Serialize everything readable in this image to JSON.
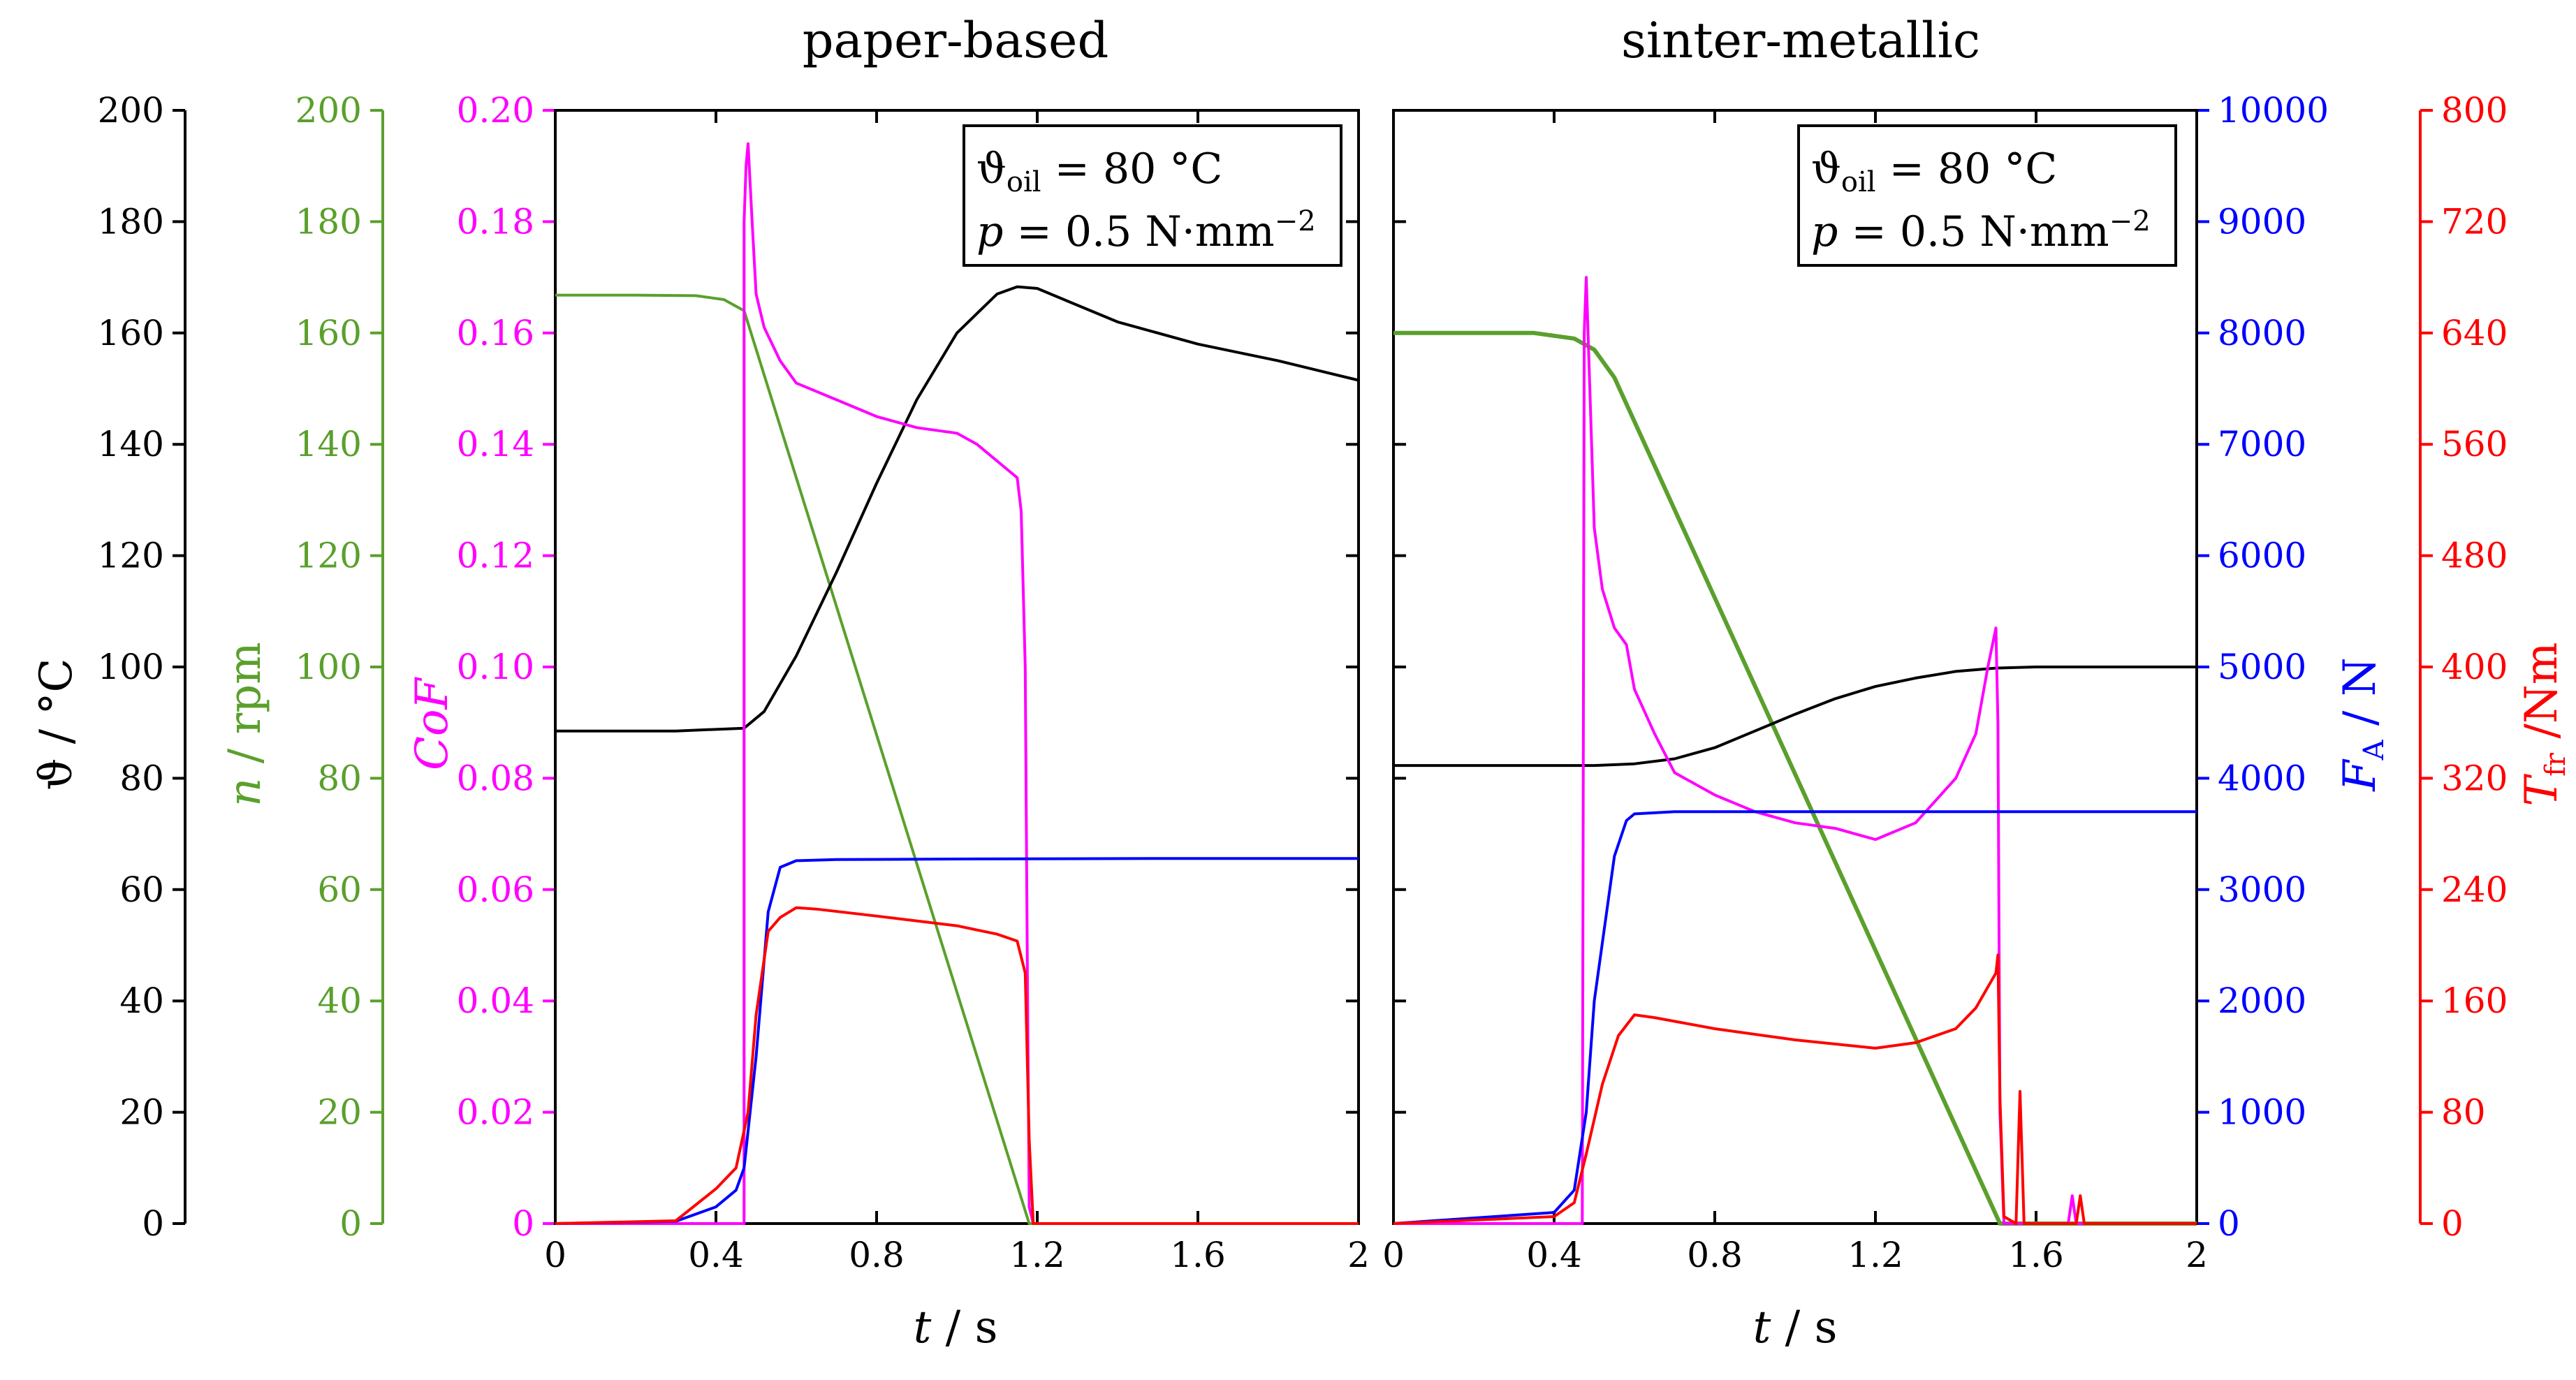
{
  "colors": {
    "temperature": "#000000",
    "speed": "#5aa02c",
    "cof": "#ff00ff",
    "force": "#0000ff",
    "torque": "#ff0000",
    "frame": "#000000"
  },
  "axes": {
    "temperature": {
      "label": "ϑ / °C",
      "ticks": [
        "0",
        "20",
        "40",
        "60",
        "80",
        "100",
        "120",
        "140",
        "160",
        "180",
        "200"
      ]
    },
    "speed": {
      "label_var": "n",
      "label_unit": " / rpm",
      "ticks": [
        "0",
        "20",
        "40",
        "60",
        "80",
        "100",
        "120",
        "140",
        "160",
        "180",
        "200"
      ]
    },
    "cof": {
      "label": "CoF",
      "ticks": [
        "0",
        "0.02",
        "0.04",
        "0.06",
        "0.08",
        "0.10",
        "0.12",
        "0.14",
        "0.16",
        "0.18",
        "0.20"
      ]
    },
    "force": {
      "label_var": "F",
      "label_sub": "A",
      "label_unit": " / N",
      "ticks": [
        "0",
        "1000",
        "2000",
        "3000",
        "4000",
        "5000",
        "6000",
        "7000",
        "8000",
        "9000",
        "10000"
      ]
    },
    "torque": {
      "label_var": "T",
      "label_sub": "fr",
      "label_unit": " /Nm",
      "ticks": [
        "0",
        "80",
        "160",
        "240",
        "320",
        "400",
        "480",
        "560",
        "640",
        "720",
        "800"
      ]
    },
    "time": {
      "label_var": "t",
      "label_unit": " / s",
      "ticks": [
        "0",
        "0.4",
        "0.8",
        "1.2",
        "1.6",
        "2"
      ]
    }
  },
  "panels": [
    {
      "title": "paper-based",
      "legend": {
        "line1_pre": "ϑ",
        "line1_sub": "oil",
        "line1_post": " = 80 °C",
        "line2_var": "p",
        "line2_post": " = 0.5 N·mm",
        "line2_sup": "−2"
      }
    },
    {
      "title": "sinter-metallic",
      "legend": {
        "line1_pre": "ϑ",
        "line1_sub": "oil",
        "line1_post": " = 80 °C",
        "line2_var": "p",
        "line2_post": " = 0.5 N·mm",
        "line2_sup": "−2"
      }
    }
  ],
  "chart_data": [
    {
      "type": "line",
      "title": "paper-based",
      "xlabel": "t / s",
      "xlim": [
        0,
        2
      ],
      "series": [
        {
          "name": "temperature",
          "axis": "ϑ / °C",
          "ylim": [
            0,
            200
          ],
          "x": [
            0,
            0.3,
            0.47,
            0.52,
            0.6,
            0.7,
            0.8,
            0.9,
            1.0,
            1.1,
            1.15,
            1.2,
            1.3,
            1.4,
            1.6,
            1.8,
            2.0
          ],
          "y": [
            88.5,
            88.5,
            89,
            92,
            102,
            117,
            133,
            148,
            160,
            167,
            168.3,
            168,
            165,
            162,
            158,
            155,
            151.5
          ]
        },
        {
          "name": "speed",
          "axis": "n / rpm",
          "ylim": [
            0,
            200
          ],
          "x": [
            0,
            0.2,
            0.35,
            0.42,
            0.47,
            1.18,
            1.2,
            2.0
          ],
          "y": [
            166.8,
            166.8,
            166.7,
            166,
            164,
            0,
            0,
            0
          ]
        },
        {
          "name": "CoF",
          "axis": "CoF",
          "ylim": [
            0,
            0.2
          ],
          "x": [
            0,
            0.46,
            0.47,
            0.47,
            0.475,
            0.48,
            0.49,
            0.5,
            0.52,
            0.56,
            0.6,
            0.7,
            0.8,
            0.9,
            1.0,
            1.05,
            1.1,
            1.15,
            1.16,
            1.17,
            1.175,
            1.18,
            1.19,
            2.0
          ],
          "y": [
            0,
            0,
            0,
            0.18,
            0.19,
            0.194,
            0.18,
            0.167,
            0.161,
            0.155,
            0.151,
            0.148,
            0.145,
            0.143,
            0.142,
            0.14,
            0.137,
            0.134,
            0.128,
            0.1,
            0.05,
            0.003,
            0,
            0
          ]
        },
        {
          "name": "force",
          "axis": "F_A / N",
          "ylim": [
            0,
            10000
          ],
          "x": [
            0,
            0.3,
            0.4,
            0.45,
            0.47,
            0.5,
            0.53,
            0.56,
            0.6,
            0.7,
            1.0,
            1.5,
            2.0
          ],
          "y": [
            0,
            20,
            150,
            300,
            500,
            1500,
            2800,
            3200,
            3260,
            3270,
            3275,
            3280,
            3280
          ]
        },
        {
          "name": "torque",
          "axis": "T_fr / Nm",
          "ylim": [
            0,
            800
          ],
          "x": [
            0,
            0.3,
            0.4,
            0.45,
            0.48,
            0.5,
            0.53,
            0.56,
            0.6,
            0.65,
            0.8,
            1.0,
            1.1,
            1.15,
            1.17,
            1.18,
            1.19,
            1.4,
            2.0
          ],
          "y": [
            0,
            2,
            25,
            40,
            80,
            150,
            210,
            220,
            227,
            226,
            221,
            214,
            208,
            203,
            180,
            60,
            0,
            0,
            0
          ]
        }
      ]
    },
    {
      "type": "line",
      "title": "sinter-metallic",
      "xlabel": "t / s",
      "xlim": [
        0,
        2
      ],
      "series": [
        {
          "name": "temperature",
          "axis": "ϑ / °C",
          "ylim": [
            0,
            200
          ],
          "x": [
            0,
            0.5,
            0.6,
            0.7,
            0.8,
            0.9,
            1.0,
            1.1,
            1.2,
            1.3,
            1.4,
            1.5,
            1.6,
            1.8,
            2.0
          ],
          "y": [
            82.3,
            82.3,
            82.6,
            83.5,
            85.5,
            88.5,
            91.5,
            94.3,
            96.5,
            98,
            99.2,
            99.8,
            100,
            100,
            100
          ]
        },
        {
          "name": "speed",
          "axis": "n / rpm",
          "ylim": [
            0,
            200
          ],
          "x": [
            0,
            0.35,
            0.45,
            0.5,
            0.55,
            1.51,
            1.52,
            2.0
          ],
          "y": [
            160,
            160,
            159,
            157,
            152,
            0,
            0,
            0
          ]
        },
        {
          "name": "CoF",
          "axis": "CoF",
          "ylim": [
            0,
            0.2
          ],
          "x": [
            0,
            0.47,
            0.475,
            0.48,
            0.5,
            0.52,
            0.55,
            0.58,
            0.6,
            0.65,
            0.7,
            0.8,
            0.9,
            1.0,
            1.1,
            1.2,
            1.3,
            1.4,
            1.45,
            1.48,
            1.5,
            1.505,
            1.51,
            1.52,
            1.55,
            1.6,
            1.68,
            1.69,
            1.7,
            1.72,
            2.0
          ],
          "y": [
            0,
            0,
            0.16,
            0.17,
            0.125,
            0.114,
            0.107,
            0.104,
            0.096,
            0.088,
            0.081,
            0.077,
            0.074,
            0.072,
            0.071,
            0.069,
            0.072,
            0.08,
            0.088,
            0.1,
            0.107,
            0.09,
            0.02,
            0,
            0,
            0,
            0,
            0.005,
            0,
            0,
            0
          ]
        },
        {
          "name": "force",
          "axis": "F_A / N",
          "ylim": [
            0,
            10000
          ],
          "x": [
            0,
            0.4,
            0.45,
            0.48,
            0.5,
            0.55,
            0.58,
            0.6,
            0.7,
            1.0,
            1.5,
            2.0
          ],
          "y": [
            0,
            100,
            300,
            1000,
            2000,
            3300,
            3620,
            3680,
            3700,
            3700,
            3700,
            3700
          ]
        },
        {
          "name": "torque",
          "axis": "T_fr / Nm",
          "ylim": [
            0,
            800
          ],
          "x": [
            0,
            0.4,
            0.45,
            0.48,
            0.52,
            0.56,
            0.6,
            0.65,
            0.8,
            1.0,
            1.2,
            1.3,
            1.4,
            1.45,
            1.48,
            1.5,
            1.505,
            1.51,
            1.52,
            1.55,
            1.56,
            1.57,
            1.6,
            1.7,
            1.71,
            1.72,
            2.0
          ],
          "y": [
            0,
            5,
            15,
            50,
            100,
            135,
            150,
            148,
            140,
            132,
            126,
            130,
            140,
            155,
            170,
            180,
            193,
            90,
            5,
            0,
            95,
            0,
            0,
            0,
            20,
            0,
            0
          ]
        }
      ]
    }
  ]
}
